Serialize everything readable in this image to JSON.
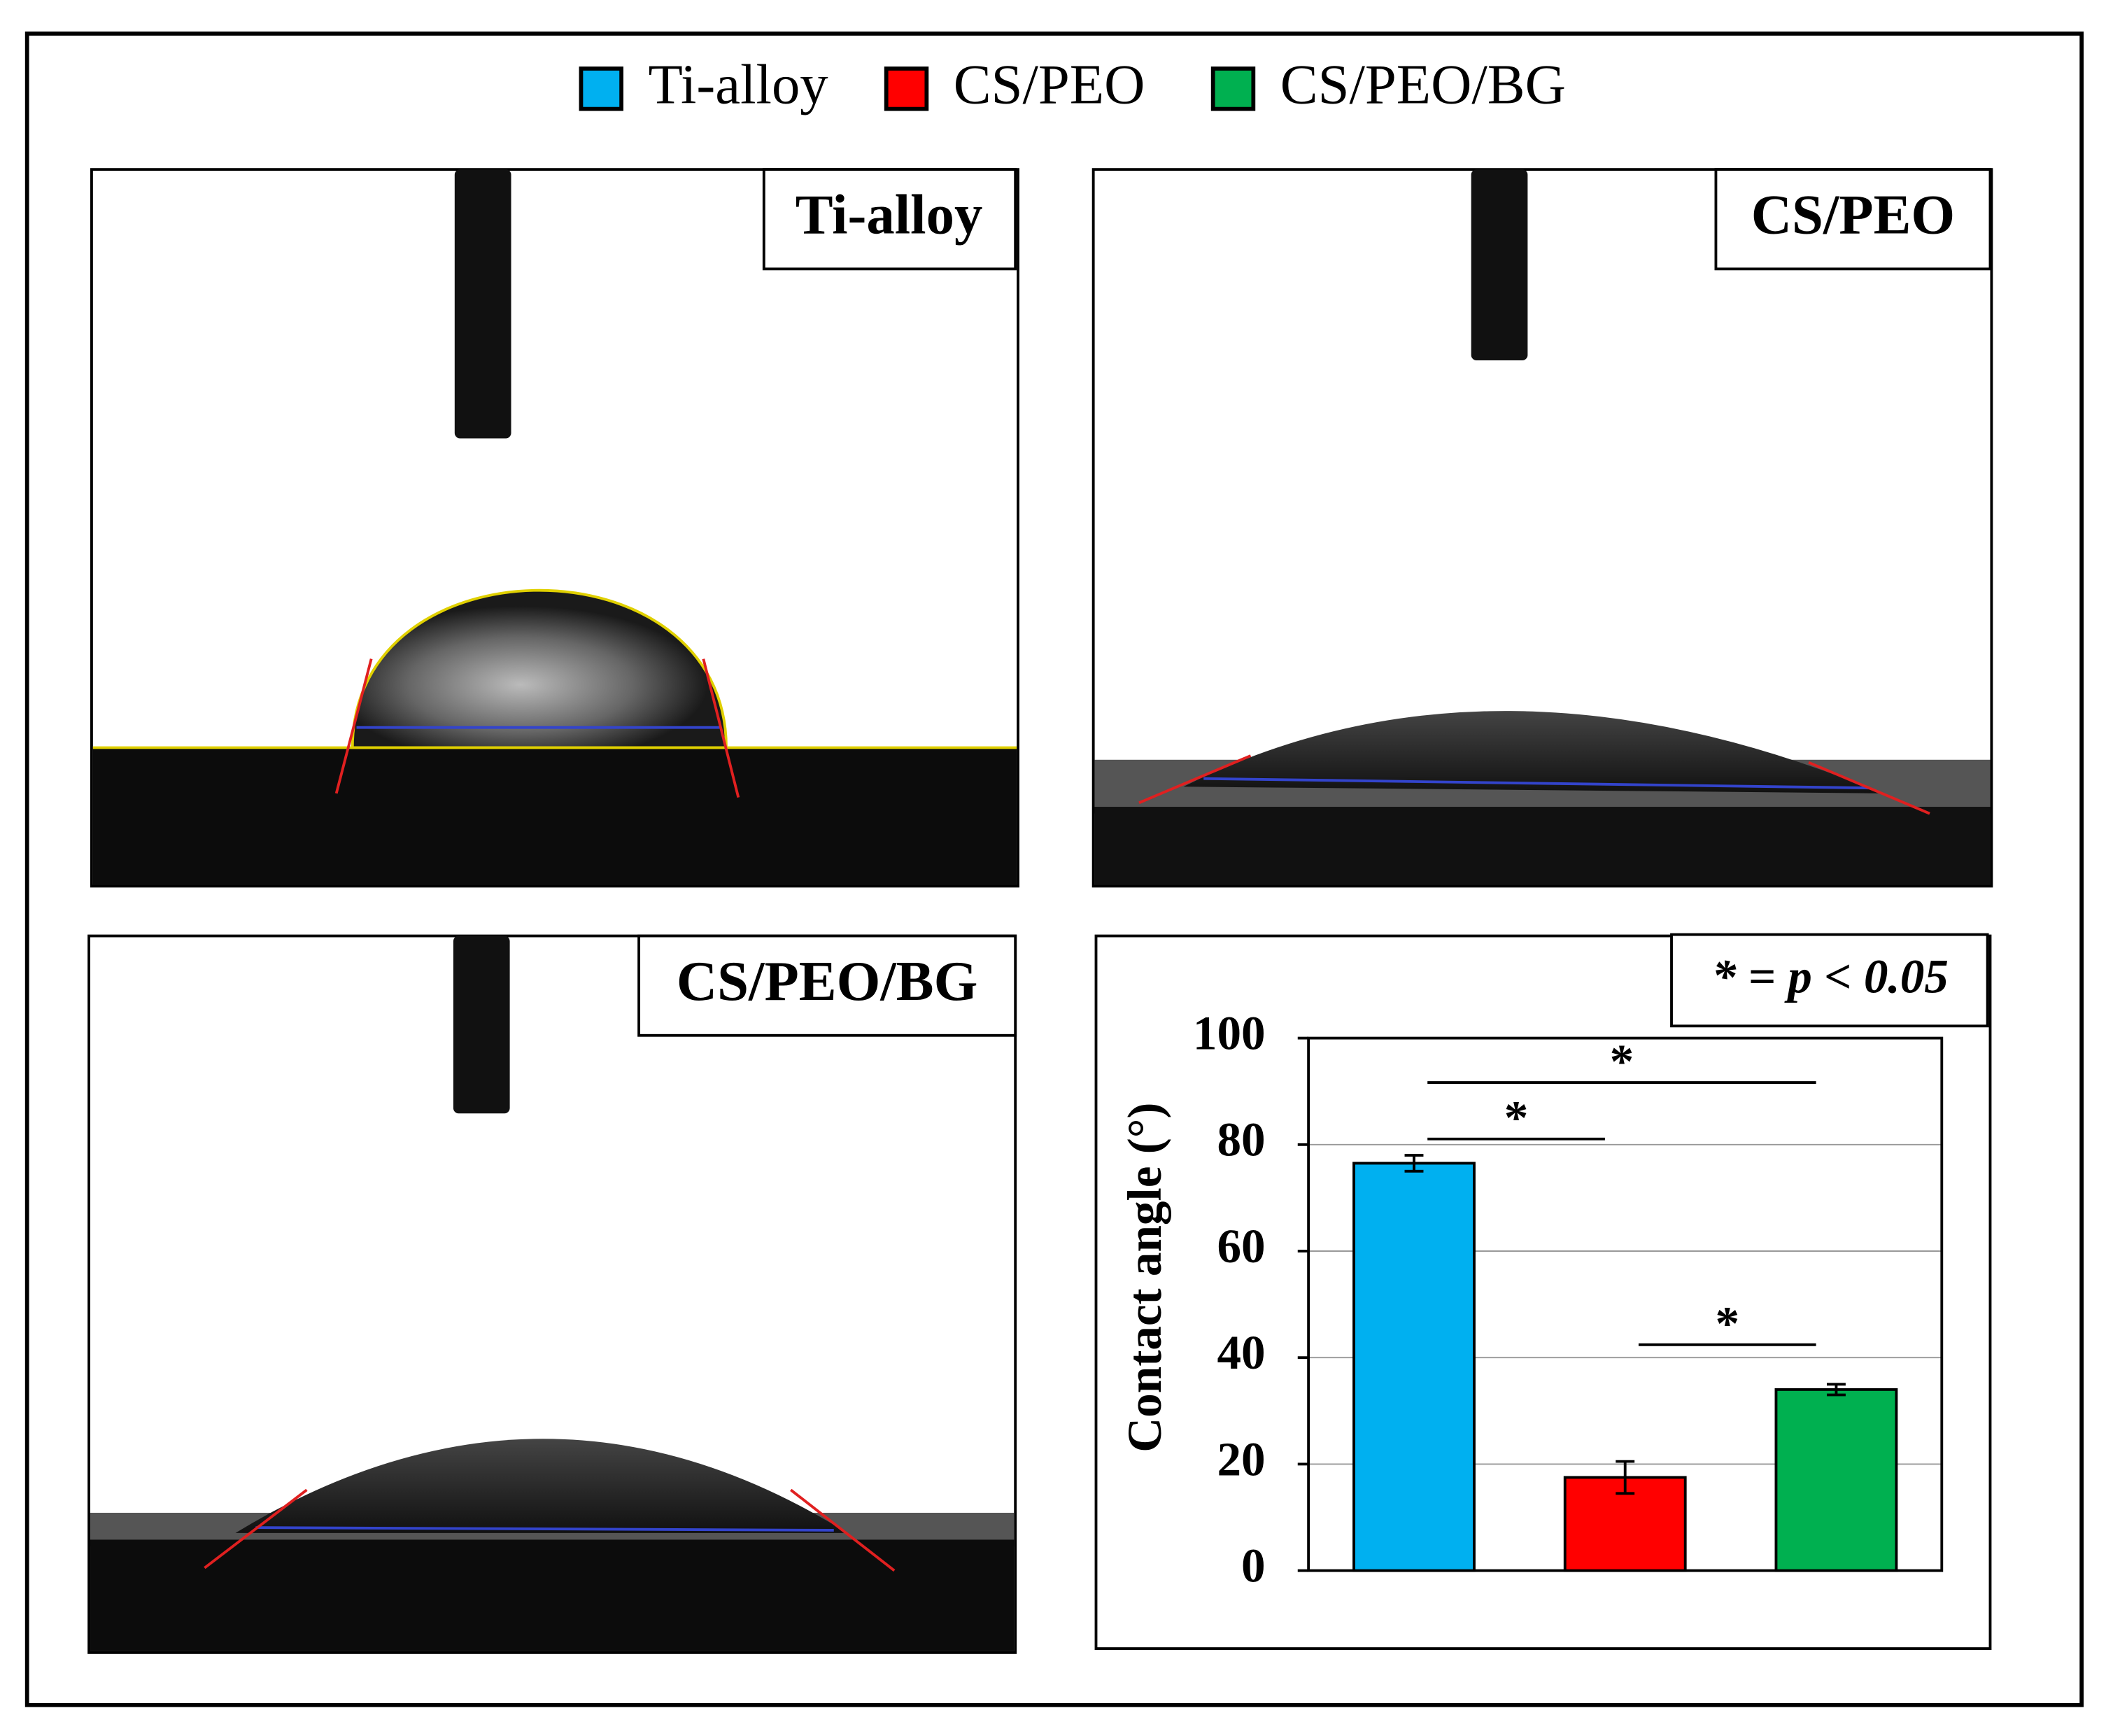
{
  "panels": [
    {
      "label": "Ti-alloy"
    },
    {
      "label": "CS/PEO"
    },
    {
      "label": "CS/PEO/BG"
    }
  ],
  "chart_data": {
    "type": "bar",
    "series": [
      {
        "name": "Ti-alloy",
        "color": "#00b0f0",
        "values": [
          76.5
        ],
        "errors": [
          1.5
        ]
      },
      {
        "name": "CS/PEO",
        "color": "#ff0000",
        "values": [
          17.5
        ],
        "errors": [
          3
        ]
      },
      {
        "name": "CS/PEO/BG",
        "color": "#00b050",
        "values": [
          34
        ],
        "errors": [
          1
        ]
      }
    ],
    "y_label": "Contact angle (°)",
    "ylim": [
      0,
      100
    ],
    "yticks": [
      0,
      20,
      40,
      60,
      80,
      100
    ],
    "grid": true,
    "significance_note": "* = p < 0.05",
    "significance": [
      {
        "label": "*"
      },
      {
        "label": "*"
      },
      {
        "label": "*"
      }
    ]
  }
}
